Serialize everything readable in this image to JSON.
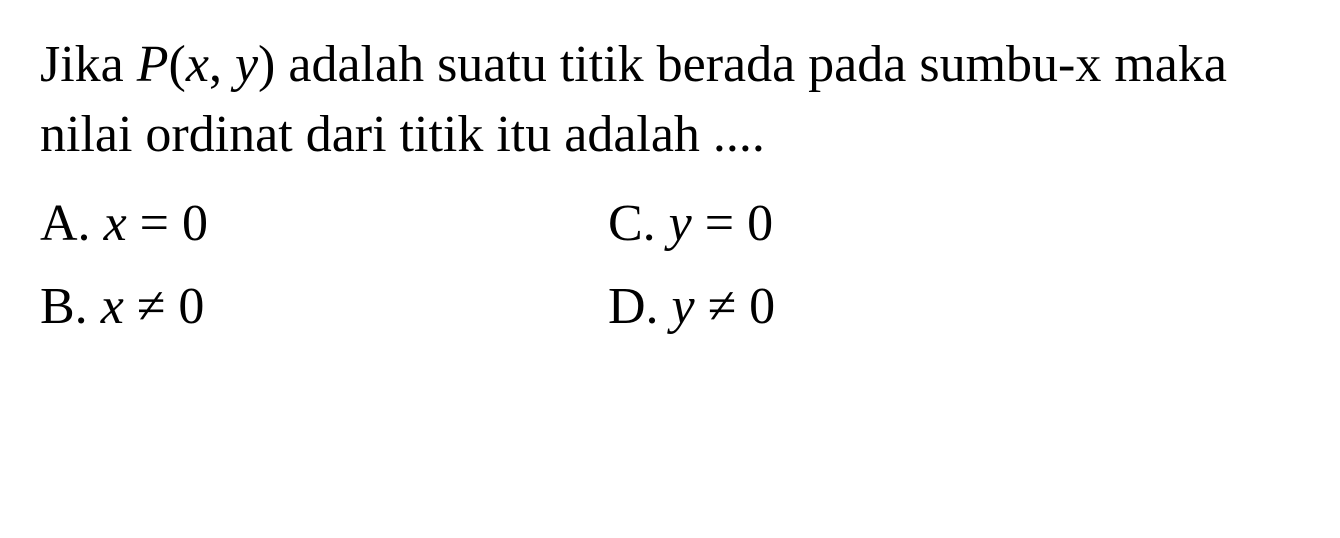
{
  "question": {
    "prefix": "Jika ",
    "point_expr_open": "P",
    "point_expr_paren_open": "(",
    "point_var_x": "x",
    "point_comma": ", ",
    "point_var_y": "y",
    "point_expr_paren_close": ")",
    "middle": " adalah suatu titik berada pada sumbu-x maka nilai ordinat dari titik itu adalah ...."
  },
  "options": {
    "a": {
      "label": "A. ",
      "var": "x",
      "rel": " = 0"
    },
    "b": {
      "label": "B. ",
      "var": "x",
      "rel": " ≠ 0"
    },
    "c": {
      "label": "C. ",
      "var": "y",
      "rel": " = 0"
    },
    "d": {
      "label": "D. ",
      "var": "y",
      "rel": " ≠ 0"
    }
  },
  "style": {
    "background_color": "#ffffff",
    "text_color": "#000000",
    "font_family": "Times New Roman",
    "question_fontsize": 52,
    "option_fontsize": 52
  }
}
